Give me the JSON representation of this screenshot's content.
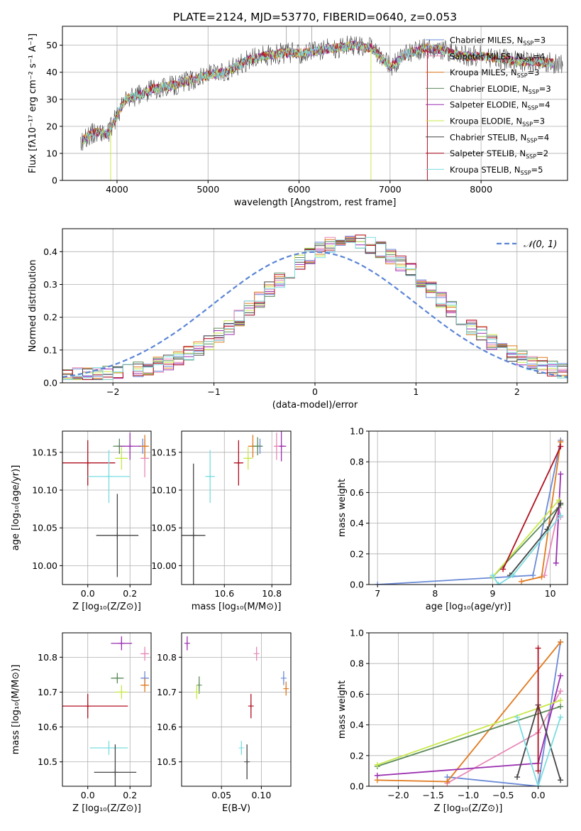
{
  "chart_data": [
    {
      "id": "spectrum",
      "type": "line",
      "title": "PLATE=2124, MJD=53770, FIBERID=0640, z=0.053",
      "xlabel": "wavelength [Angstrom, rest frame]",
      "ylabel": "Flux [fλ10⁻¹⁷ erg cm⁻² s⁻¹ A⁻¹]",
      "xlim": [
        3400,
        8950
      ],
      "ylim": [
        0,
        57
      ],
      "xticks": [
        4000,
        5000,
        6000,
        7000,
        8000
      ],
      "yticks": [
        0,
        10,
        20,
        30,
        40,
        50
      ],
      "grid": true,
      "legend_position": "upper-right",
      "continuum_x": [
        3600,
        3700,
        3800,
        3900,
        4000,
        4100,
        4200,
        4300,
        4400,
        4600,
        4800,
        5000,
        5200,
        5400,
        5600,
        5800,
        6000,
        6200,
        6400,
        6600,
        6800,
        7000,
        7200,
        7400,
        7600,
        7800,
        8000,
        8200,
        8400,
        8600,
        8900
      ],
      "continuum_y": [
        14,
        17,
        18,
        17,
        24,
        30,
        31,
        32,
        34,
        35,
        37,
        39,
        40,
        44,
        46,
        47,
        47,
        48,
        49,
        50,
        49,
        42,
        47,
        49,
        48,
        46,
        46,
        45,
        44,
        44,
        43
      ],
      "series": [
        {
          "name": "Chabrier MILES, N",
          "sub": "SSP",
          "tail": "=3",
          "color": "#6a8ad8"
        },
        {
          "name": "Salpeter MILES, N",
          "sub": "SSP",
          "tail": "=4",
          "color": "#e887b7"
        },
        {
          "name": "Kroupa MILES, N",
          "sub": "SSP",
          "tail": "=3",
          "color": "#e07a1f"
        },
        {
          "name": "Chabrier ELODIE, N",
          "sub": "SSP",
          "tail": "=3",
          "color": "#5a8a58"
        },
        {
          "name": "Salpeter ELODIE, N",
          "sub": "SSP",
          "tail": "=4",
          "color": "#9a2fb0"
        },
        {
          "name": "Kroupa ELODIE, N",
          "sub": "SSP",
          "tail": "=3",
          "color": "#c8e84a"
        },
        {
          "name": "Chabrier STELIB, N",
          "sub": "SSP",
          "tail": "=4",
          "color": "#444444"
        },
        {
          "name": "Salpeter STELIB, N",
          "sub": "SSP",
          "tail": "=2",
          "color": "#b01020"
        },
        {
          "name": "Kroupa STELIB, N",
          "sub": "SSP",
          "tail": "=5",
          "color": "#7adce0"
        }
      ]
    },
    {
      "id": "residuals",
      "type": "bar",
      "xlabel": "(data-model)/error",
      "ylabel": "Normed distribution",
      "xlim": [
        -2.5,
        2.5
      ],
      "ylim": [
        0,
        0.47
      ],
      "xticks": [
        -2,
        -1,
        0,
        1,
        2
      ],
      "yticks": [
        0.0,
        0.1,
        0.2,
        0.3,
        0.4
      ],
      "grid": true,
      "legend": "𝒩(0, 1)",
      "legend_position": "upper-right",
      "bin_width": 0.1
    },
    {
      "id": "age_vs_Z",
      "type": "scatter",
      "xlabel": "Z [log₁₀(Z/Z⊙)]",
      "ylabel": "age  [log₁₀(age/yr)]",
      "xlim": [
        -0.12,
        0.3
      ],
      "ylim": [
        9.975,
        10.178
      ],
      "xticks": [
        0.0,
        0.2
      ],
      "yticks": [
        10.0,
        10.05,
        10.1,
        10.15
      ],
      "grid": true,
      "points": [
        {
          "x": 0.26,
          "y": 10.158,
          "xerr": 0.02,
          "yerr": 0.01,
          "color": "#6a8ad8"
        },
        {
          "x": 0.27,
          "y": 10.142,
          "xerr": 0.02,
          "yerr": 0.025,
          "color": "#e887b7"
        },
        {
          "x": 0.27,
          "y": 10.158,
          "xerr": 0.02,
          "yerr": 0.015,
          "color": "#e07a1f"
        },
        {
          "x": 0.15,
          "y": 10.158,
          "xerr": 0.03,
          "yerr": 0.01,
          "color": "#5a8a58"
        },
        {
          "x": 0.2,
          "y": 10.158,
          "xerr": 0.05,
          "yerr": 0.018,
          "color": "#9a2fb0"
        },
        {
          "x": 0.16,
          "y": 10.142,
          "xerr": 0.03,
          "yerr": 0.015,
          "color": "#c8e84a"
        },
        {
          "x": 0.14,
          "y": 10.04,
          "xerr": 0.1,
          "yerr": 0.055,
          "color": "#444444"
        },
        {
          "x": 0.0,
          "y": 10.136,
          "xerr": 0.13,
          "yerr": 0.03,
          "color": "#b01020"
        },
        {
          "x": 0.1,
          "y": 10.118,
          "xerr": 0.1,
          "yerr": 0.035,
          "color": "#7adce0"
        }
      ]
    },
    {
      "id": "age_vs_mass",
      "type": "scatter",
      "xlabel": "mass [log₁₀(M/M⊙)]",
      "xlim": [
        10.42,
        10.88
      ],
      "ylim": [
        9.975,
        10.178
      ],
      "xticks": [
        10.6,
        10.8
      ],
      "yticks": [
        10.0,
        10.05,
        10.1,
        10.15
      ],
      "grid": true,
      "points": [
        {
          "x": 10.75,
          "y": 10.158,
          "xerr": 0.01,
          "yerr": 0.01,
          "color": "#6a8ad8"
        },
        {
          "x": 10.84,
          "y": 10.158,
          "xerr": 0.02,
          "yerr": 0.02,
          "color": "#9a2fb0"
        },
        {
          "x": 10.82,
          "y": 10.158,
          "xerr": 0.01,
          "yerr": 0.018,
          "color": "#e887b7"
        },
        {
          "x": 10.72,
          "y": 10.158,
          "xerr": 0.02,
          "yerr": 0.015,
          "color": "#e07a1f"
        },
        {
          "x": 10.74,
          "y": 10.158,
          "xerr": 0.02,
          "yerr": 0.012,
          "color": "#5a8a58"
        },
        {
          "x": 10.7,
          "y": 10.142,
          "xerr": 0.02,
          "yerr": 0.015,
          "color": "#c8e84a"
        },
        {
          "x": 10.66,
          "y": 10.136,
          "xerr": 0.02,
          "yerr": 0.03,
          "color": "#b01020"
        },
        {
          "x": 10.54,
          "y": 10.118,
          "xerr": 0.02,
          "yerr": 0.035,
          "color": "#7adce0"
        },
        {
          "x": 10.47,
          "y": 10.04,
          "xerr": 0.05,
          "yerr": 0.095,
          "color": "#444444"
        }
      ]
    },
    {
      "id": "weight_vs_age",
      "type": "line",
      "ylabel": "mass weight",
      "xlabel": "age  [log₁₀(age/yr)]",
      "xlim": [
        6.85,
        10.3
      ],
      "ylim": [
        0,
        1.0
      ],
      "xticks": [
        7,
        8,
        9,
        10
      ],
      "yticks": [
        0.0,
        0.2,
        0.4,
        0.6,
        0.8,
        1.0
      ],
      "grid": true,
      "series": [
        {
          "color": "#6a8ad8",
          "x": [
            7.0,
            9.7,
            10.18
          ],
          "y": [
            0.0,
            0.06,
            0.94
          ]
        },
        {
          "color": "#e887b7",
          "x": [
            9.9,
            10.15,
            10.18
          ],
          "y": [
            0.06,
            0.5,
            0.44
          ]
        },
        {
          "color": "#e07a1f",
          "x": [
            9.5,
            9.85,
            10.18
          ],
          "y": [
            0.02,
            0.05,
            0.93
          ]
        },
        {
          "color": "#5a8a58",
          "x": [
            9.0,
            10.18
          ],
          "y": [
            0.05,
            0.52
          ]
        },
        {
          "color": "#9a2fb0",
          "x": [
            10.1,
            10.18
          ],
          "y": [
            0.14,
            0.72
          ]
        },
        {
          "color": "#c8e84a",
          "x": [
            9.0,
            10.15
          ],
          "y": [
            0.05,
            0.55
          ]
        },
        {
          "color": "#444444",
          "x": [
            9.3,
            9.95,
            10.18
          ],
          "y": [
            0.06,
            0.36,
            0.53
          ]
        },
        {
          "color": "#b01020",
          "x": [
            9.18,
            10.18
          ],
          "y": [
            0.1,
            0.9
          ]
        },
        {
          "color": "#7adce0",
          "x": [
            9.0,
            9.1,
            9.35,
            10.18
          ],
          "y": [
            0.06,
            0.0,
            0.06,
            0.45
          ]
        }
      ]
    },
    {
      "id": "mass_vs_Z",
      "type": "scatter",
      "xlabel": "Z [log₁₀(Z/Z⊙)]",
      "ylabel": "mass [log₁₀(M/M⊙)]",
      "xlim": [
        -0.12,
        0.3
      ],
      "ylim": [
        10.43,
        10.87
      ],
      "xticks": [
        0.0,
        0.2
      ],
      "yticks": [
        10.5,
        10.6,
        10.7,
        10.8
      ],
      "grid": true,
      "points": [
        {
          "x": 0.16,
          "y": 10.84,
          "xerr": 0.05,
          "yerr": 0.02,
          "color": "#9a2fb0"
        },
        {
          "x": 0.27,
          "y": 10.81,
          "xerr": 0.02,
          "yerr": 0.02,
          "color": "#e887b7"
        },
        {
          "x": 0.27,
          "y": 10.74,
          "xerr": 0.02,
          "yerr": 0.02,
          "color": "#6a8ad8"
        },
        {
          "x": 0.14,
          "y": 10.74,
          "xerr": 0.03,
          "yerr": 0.015,
          "color": "#5a8a58"
        },
        {
          "x": 0.27,
          "y": 10.72,
          "xerr": 0.02,
          "yerr": 0.02,
          "color": "#e07a1f"
        },
        {
          "x": 0.16,
          "y": 10.7,
          "xerr": 0.03,
          "yerr": 0.02,
          "color": "#c8e84a"
        },
        {
          "x": 0.0,
          "y": 10.66,
          "xerr": 0.19,
          "yerr": 0.035,
          "color": "#b01020"
        },
        {
          "x": 0.1,
          "y": 10.54,
          "xerr": 0.09,
          "yerr": 0.02,
          "color": "#7adce0"
        },
        {
          "x": 0.13,
          "y": 10.47,
          "xerr": 0.1,
          "yerr": 0.08,
          "color": "#444444"
        }
      ]
    },
    {
      "id": "mass_vs_ebv",
      "type": "scatter",
      "xlabel": "E(B-V)",
      "xlim": [
        0.0,
        0.137
      ],
      "ylim": [
        10.43,
        10.87
      ],
      "xticks": [
        0.05,
        0.1
      ],
      "yticks": [
        10.5,
        10.6,
        10.7,
        10.8
      ],
      "grid": true,
      "points": [
        {
          "x": 0.007,
          "y": 10.84,
          "yerr": 0.02,
          "color": "#9a2fb0"
        },
        {
          "x": 0.094,
          "y": 10.81,
          "yerr": 0.02,
          "color": "#e887b7"
        },
        {
          "x": 0.128,
          "y": 10.74,
          "yerr": 0.02,
          "color": "#6a8ad8"
        },
        {
          "x": 0.022,
          "y": 10.72,
          "yerr": 0.025,
          "color": "#5a8a58"
        },
        {
          "x": 0.131,
          "y": 10.71,
          "yerr": 0.02,
          "color": "#e07a1f"
        },
        {
          "x": 0.019,
          "y": 10.7,
          "yerr": 0.02,
          "color": "#c8e84a"
        },
        {
          "x": 0.087,
          "y": 10.66,
          "yerr": 0.035,
          "color": "#b01020"
        },
        {
          "x": 0.075,
          "y": 10.54,
          "yerr": 0.02,
          "color": "#7adce0"
        },
        {
          "x": 0.082,
          "y": 10.5,
          "yerr": 0.05,
          "color": "#444444"
        }
      ]
    },
    {
      "id": "weight_vs_Z",
      "type": "line",
      "ylabel": "mass weight",
      "xlabel": "Z [log₁₀(Z/Z⊙)]",
      "xlim": [
        -2.42,
        0.42
      ],
      "ylim": [
        0,
        1.0
      ],
      "xticks": [
        -2.0,
        -1.5,
        -1.0,
        -0.5,
        0.0
      ],
      "yticks": [
        0.0,
        0.2,
        0.4,
        0.6,
        0.8,
        1.0
      ],
      "grid": true,
      "series": [
        {
          "color": "#6a8ad8",
          "x": [
            -1.3,
            0.0,
            0.32
          ],
          "y": [
            0.06,
            0.0,
            0.94
          ]
        },
        {
          "color": "#e887b7",
          "x": [
            -1.3,
            0.0,
            0.32
          ],
          "y": [
            0.02,
            0.35,
            0.62
          ]
        },
        {
          "color": "#e07a1f",
          "x": [
            -2.3,
            -1.3,
            0.32
          ],
          "y": [
            0.04,
            0.03,
            0.94
          ]
        },
        {
          "color": "#5a8a58",
          "x": [
            -2.3,
            0.32
          ],
          "y": [
            0.13,
            0.52
          ]
        },
        {
          "color": "#9a2fb0",
          "x": [
            -2.3,
            0.0,
            0.32
          ],
          "y": [
            0.07,
            0.15,
            0.72
          ]
        },
        {
          "color": "#c8e84a",
          "x": [
            -2.3,
            0.32
          ],
          "y": [
            0.14,
            0.56
          ]
        },
        {
          "color": "#444444",
          "x": [
            -0.3,
            0.0,
            0.32
          ],
          "y": [
            0.06,
            0.53,
            0.04
          ]
        },
        {
          "color": "#b01020",
          "x": [
            0.0,
            0.0
          ],
          "y": [
            0.1,
            0.9
          ]
        },
        {
          "color": "#7adce0",
          "x": [
            -0.3,
            0.0,
            0.32
          ],
          "y": [
            0.45,
            0.0,
            0.45
          ]
        }
      ]
    }
  ]
}
